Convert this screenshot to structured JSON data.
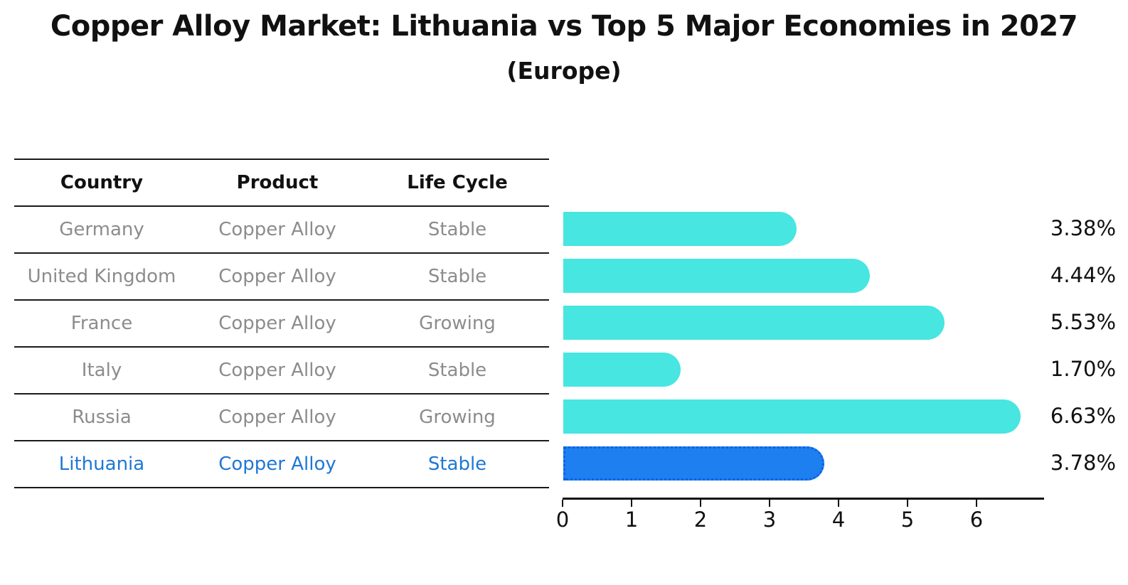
{
  "title": "Copper Alloy Market: Lithuania vs Top 5 Major Economies in 2027",
  "subtitle": "(Europe)",
  "table": {
    "headers": [
      "Country",
      "Product",
      "Life Cycle"
    ],
    "rows": [
      {
        "country": "Germany",
        "product": "Copper Alloy",
        "life_cycle": "Stable",
        "highlighted": false
      },
      {
        "country": "United Kingdom",
        "product": "Copper Alloy",
        "life_cycle": "Stable",
        "highlighted": false
      },
      {
        "country": "France",
        "product": "Copper Alloy",
        "life_cycle": "Growing",
        "highlighted": false
      },
      {
        "country": "Italy",
        "product": "Copper Alloy",
        "life_cycle": "Stable",
        "highlighted": false
      },
      {
        "country": "Russia",
        "product": "Copper Alloy",
        "life_cycle": "Growing",
        "highlighted": false
      },
      {
        "country": "Lithuania",
        "product": "Copper Alloy",
        "life_cycle": "Stable",
        "highlighted": true
      }
    ]
  },
  "chart_data": {
    "type": "bar",
    "orientation": "horizontal",
    "title": "Copper Alloy Market: Lithuania vs Top 5 Major Economies in 2027 (Europe)",
    "categories": [
      "Germany",
      "United Kingdom",
      "France",
      "Italy",
      "Russia",
      "Lithuania"
    ],
    "values": [
      3.38,
      4.44,
      5.53,
      1.7,
      6.63,
      3.78
    ],
    "value_labels": [
      "3.38%",
      "4.44%",
      "5.53%",
      "1.70%",
      "6.63%",
      "3.78%"
    ],
    "xticks": [
      0,
      1,
      2,
      3,
      4,
      5,
      6
    ],
    "xlim": [
      0,
      6.97
    ],
    "grid": false,
    "legend": false,
    "highlight_index": 5,
    "colors": {
      "default_bar": "#47e6e0",
      "highlight_bar": "#1e7ff0",
      "highlight_bar_border": "#0e62e0",
      "row_text": "#8c8c8c",
      "highlight_text": "#1f77d4",
      "axis": "#111111"
    }
  }
}
